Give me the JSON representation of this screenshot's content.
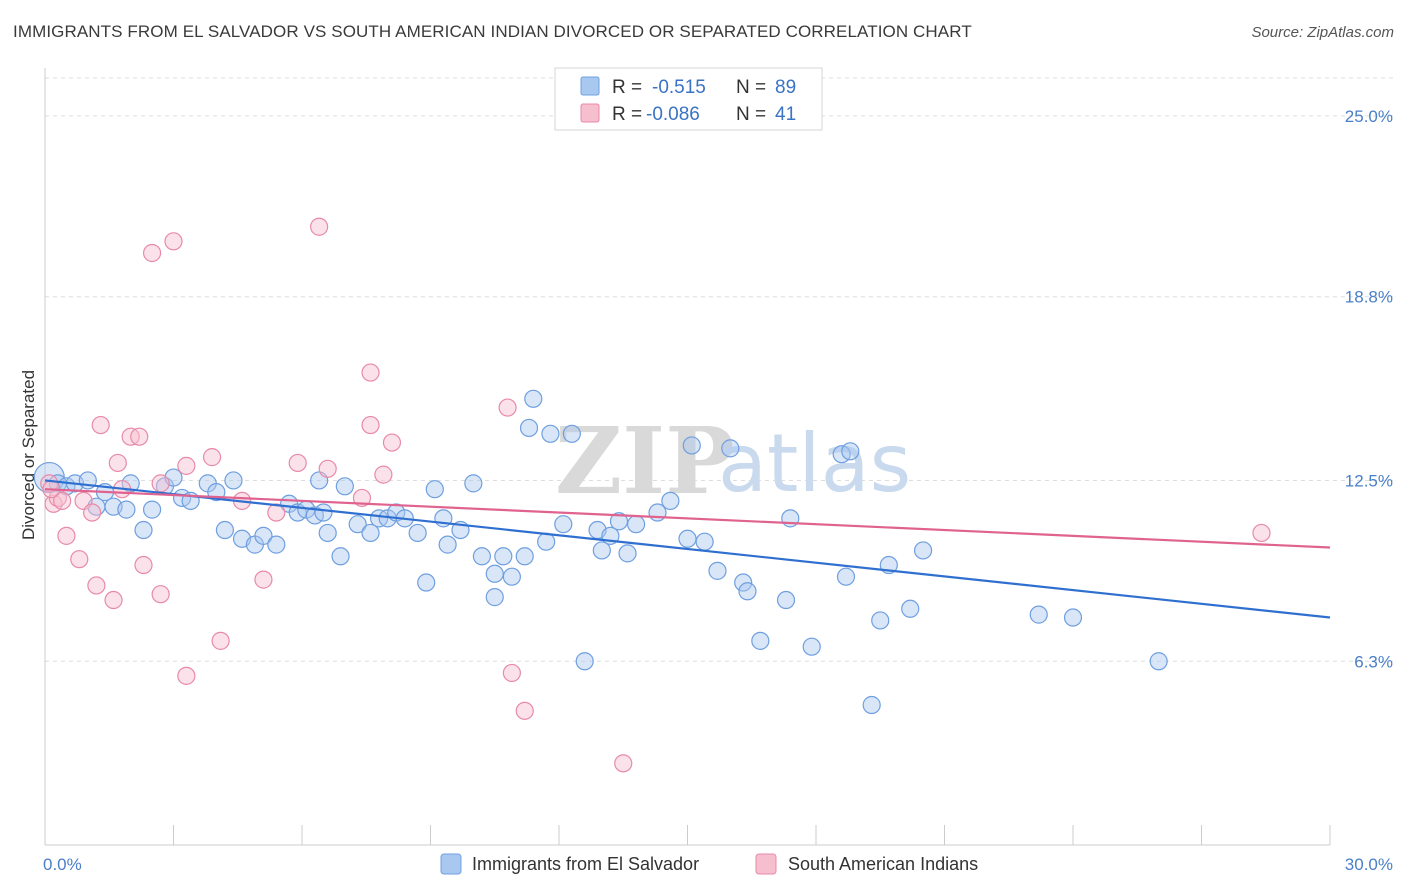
{
  "title": "IMMIGRANTS FROM EL SALVADOR VS SOUTH AMERICAN INDIAN DIVORCED OR SEPARATED CORRELATION CHART",
  "source": "Source: ZipAtlas.com",
  "watermark": {
    "zip": "ZIP",
    "atlas": "atlas"
  },
  "colors": {
    "blue_fill": "#a9c8f0",
    "blue_stroke": "#6f9fe0",
    "blue_line": "#2f6fd0",
    "pink_fill": "#f6bfd0",
    "pink_stroke": "#e88aa8",
    "pink_line": "#e0628f",
    "tick_text": "#4a7fc8",
    "grid": "#dddddd"
  },
  "legend": {
    "rows": [
      {
        "r_label": "R =",
        "r_value": "-0.515",
        "n_label": "N =",
        "n_value": "89"
      },
      {
        "r_label": "R =",
        "r_value": "-0.086",
        "n_label": "N =",
        "n_value": "41"
      }
    ]
  },
  "bottom_legend": [
    "Immigrants from El Salvador",
    "South American Indians"
  ],
  "chart_data": {
    "type": "scatter",
    "title": "IMMIGRANTS FROM EL SALVADOR VS SOUTH AMERICAN INDIAN DIVORCED OR SEPARATED CORRELATION CHART",
    "xlabel": "",
    "ylabel": "Divorced or Separated",
    "xlim": [
      0,
      30
    ],
    "ylim": [
      0,
      26.3
    ],
    "x_tick_labels": [
      {
        "value": 0,
        "label": "0.0%"
      },
      {
        "value": 30,
        "label": "30.0%"
      }
    ],
    "y_tick_labels": [
      {
        "value": 6.3,
        "label": "6.3%"
      },
      {
        "value": 12.5,
        "label": "12.5%"
      },
      {
        "value": 18.8,
        "label": "18.8%"
      },
      {
        "value": 25.0,
        "label": "25.0%"
      }
    ],
    "grid": "horizontal dashed",
    "legend_position": "top-center",
    "series": [
      {
        "name": "Immigrants from El Salvador",
        "color": "#6f9fe0",
        "trend": {
          "x": [
            0,
            30
          ],
          "y": [
            12.5,
            7.8
          ]
        },
        "points": [
          [
            0.1,
            12.6
          ],
          [
            0.3,
            12.4
          ],
          [
            0.5,
            12.3
          ],
          [
            0.7,
            12.4
          ],
          [
            1.0,
            12.5
          ],
          [
            1.2,
            11.6
          ],
          [
            1.4,
            12.1
          ],
          [
            1.6,
            11.6
          ],
          [
            1.9,
            11.5
          ],
          [
            2.0,
            12.4
          ],
          [
            2.3,
            10.8
          ],
          [
            2.5,
            11.5
          ],
          [
            2.8,
            12.3
          ],
          [
            3.0,
            12.6
          ],
          [
            3.2,
            11.9
          ],
          [
            3.4,
            11.8
          ],
          [
            3.8,
            12.4
          ],
          [
            4.0,
            12.1
          ],
          [
            4.2,
            10.8
          ],
          [
            4.4,
            12.5
          ],
          [
            4.6,
            10.5
          ],
          [
            4.9,
            10.3
          ],
          [
            5.1,
            10.6
          ],
          [
            5.4,
            10.3
          ],
          [
            5.7,
            11.7
          ],
          [
            5.9,
            11.4
          ],
          [
            6.1,
            11.5
          ],
          [
            6.3,
            11.3
          ],
          [
            6.5,
            11.4
          ],
          [
            6.4,
            12.5
          ],
          [
            6.6,
            10.7
          ],
          [
            6.9,
            9.9
          ],
          [
            7.0,
            12.3
          ],
          [
            7.3,
            11.0
          ],
          [
            7.6,
            10.7
          ],
          [
            7.8,
            11.2
          ],
          [
            8.0,
            11.2
          ],
          [
            8.2,
            11.4
          ],
          [
            8.4,
            11.2
          ],
          [
            8.7,
            10.7
          ],
          [
            9.1,
            12.2
          ],
          [
            8.9,
            9.0
          ],
          [
            9.3,
            11.2
          ],
          [
            9.4,
            10.3
          ],
          [
            9.7,
            10.8
          ],
          [
            10.0,
            12.4
          ],
          [
            10.2,
            9.9
          ],
          [
            10.5,
            8.5
          ],
          [
            10.5,
            9.3
          ],
          [
            10.7,
            9.9
          ],
          [
            10.9,
            9.2
          ],
          [
            11.2,
            9.9
          ],
          [
            11.3,
            14.3
          ],
          [
            11.4,
            15.3
          ],
          [
            11.7,
            10.4
          ],
          [
            11.8,
            14.1
          ],
          [
            12.1,
            11.0
          ],
          [
            12.3,
            14.1
          ],
          [
            12.6,
            6.3
          ],
          [
            12.9,
            10.8
          ],
          [
            13.0,
            10.1
          ],
          [
            13.2,
            10.6
          ],
          [
            13.4,
            11.1
          ],
          [
            13.6,
            10.0
          ],
          [
            13.8,
            11.0
          ],
          [
            14.3,
            11.4
          ],
          [
            14.6,
            11.8
          ],
          [
            15.0,
            10.5
          ],
          [
            15.1,
            13.7
          ],
          [
            15.4,
            10.4
          ],
          [
            15.7,
            9.4
          ],
          [
            16.0,
            13.6
          ],
          [
            16.3,
            9.0
          ],
          [
            16.4,
            8.7
          ],
          [
            16.7,
            7.0
          ],
          [
            17.3,
            8.4
          ],
          [
            17.4,
            11.2
          ],
          [
            17.9,
            6.8
          ],
          [
            18.6,
            13.4
          ],
          [
            18.7,
            9.2
          ],
          [
            18.8,
            13.5
          ],
          [
            19.3,
            4.8
          ],
          [
            19.5,
            7.7
          ],
          [
            19.7,
            9.6
          ],
          [
            20.2,
            8.1
          ],
          [
            20.5,
            10.1
          ],
          [
            23.2,
            7.9
          ],
          [
            24.0,
            7.8
          ],
          [
            26.0,
            6.3
          ]
        ]
      },
      {
        "name": "South American Indians",
        "color": "#e88aa8",
        "trend": {
          "x": [
            0,
            30
          ],
          "y": [
            12.2,
            10.2
          ]
        },
        "points": [
          [
            0.1,
            12.4
          ],
          [
            0.2,
            11.7
          ],
          [
            0.3,
            11.9
          ],
          [
            0.4,
            11.8
          ],
          [
            0.5,
            10.6
          ],
          [
            0.8,
            9.8
          ],
          [
            0.9,
            11.8
          ],
          [
            1.1,
            11.4
          ],
          [
            1.2,
            8.9
          ],
          [
            1.3,
            14.4
          ],
          [
            1.6,
            8.4
          ],
          [
            1.7,
            13.1
          ],
          [
            1.8,
            12.2
          ],
          [
            2.0,
            14.0
          ],
          [
            2.2,
            14.0
          ],
          [
            2.3,
            9.6
          ],
          [
            2.5,
            20.3
          ],
          [
            2.7,
            8.6
          ],
          [
            2.7,
            12.4
          ],
          [
            3.0,
            20.7
          ],
          [
            3.3,
            5.8
          ],
          [
            3.3,
            13.0
          ],
          [
            3.9,
            13.3
          ],
          [
            4.1,
            7.0
          ],
          [
            4.6,
            11.8
          ],
          [
            5.1,
            9.1
          ],
          [
            5.4,
            11.4
          ],
          [
            5.9,
            13.1
          ],
          [
            6.6,
            12.9
          ],
          [
            6.4,
            21.2
          ],
          [
            7.4,
            11.9
          ],
          [
            7.6,
            16.2
          ],
          [
            7.6,
            14.4
          ],
          [
            7.9,
            12.7
          ],
          [
            8.1,
            13.8
          ],
          [
            10.8,
            15.0
          ],
          [
            10.9,
            5.9
          ],
          [
            11.2,
            4.6
          ],
          [
            13.5,
            2.8
          ],
          [
            28.4,
            10.7
          ],
          [
            0.15,
            12.2
          ]
        ]
      }
    ]
  }
}
